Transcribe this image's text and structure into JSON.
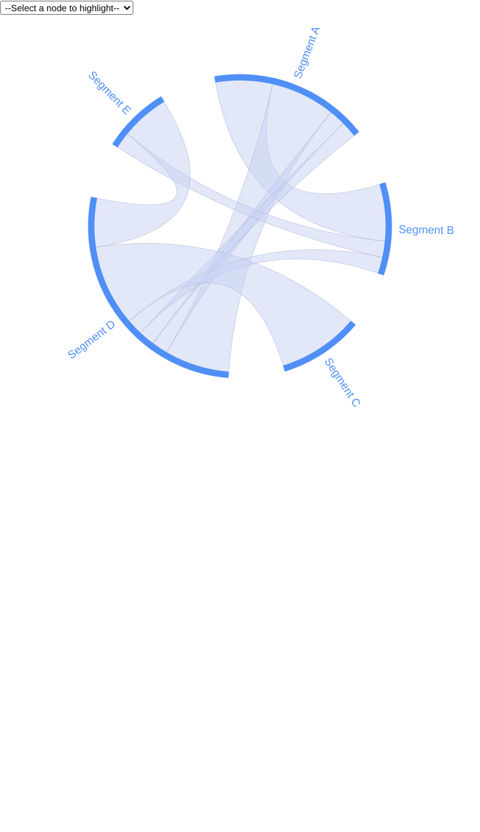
{
  "controls": {
    "node_select": {
      "selected_label": "--Select a node to highlight--",
      "options": [
        "--Select a node to highlight--"
      ]
    }
  },
  "colors": {
    "arc": "#4f8ff7",
    "ribbon_fill": "#c8d2f2",
    "ribbon_stroke": "#aab4dc",
    "label": "#4f8ff7"
  },
  "chart_data": {
    "type": "chord",
    "title": "",
    "nodes": [
      {
        "name": "Segment A",
        "label": "Segment A"
      },
      {
        "name": "Segment B",
        "label": "Segment B"
      },
      {
        "name": "Segment C",
        "label": "Segment C"
      },
      {
        "name": "Segment D",
        "label": "Segment D"
      },
      {
        "name": "Segment E",
        "label": "Segment E"
      }
    ],
    "links": [
      {
        "source": "Segment A",
        "target": "Segment B",
        "value": 35
      },
      {
        "source": "Segment A",
        "target": "Segment D",
        "value": 40
      },
      {
        "source": "Segment A",
        "target": "Segment D",
        "value": 10
      },
      {
        "source": "Segment A",
        "target": "Segment D",
        "value": 10
      },
      {
        "source": "Segment B",
        "target": "Segment E",
        "value": 10
      },
      {
        "source": "Segment B",
        "target": "Segment D",
        "value": 10
      },
      {
        "source": "Segment C",
        "target": "Segment D",
        "value": 50
      },
      {
        "source": "Segment D",
        "target": "Segment E",
        "value": 30
      }
    ]
  }
}
